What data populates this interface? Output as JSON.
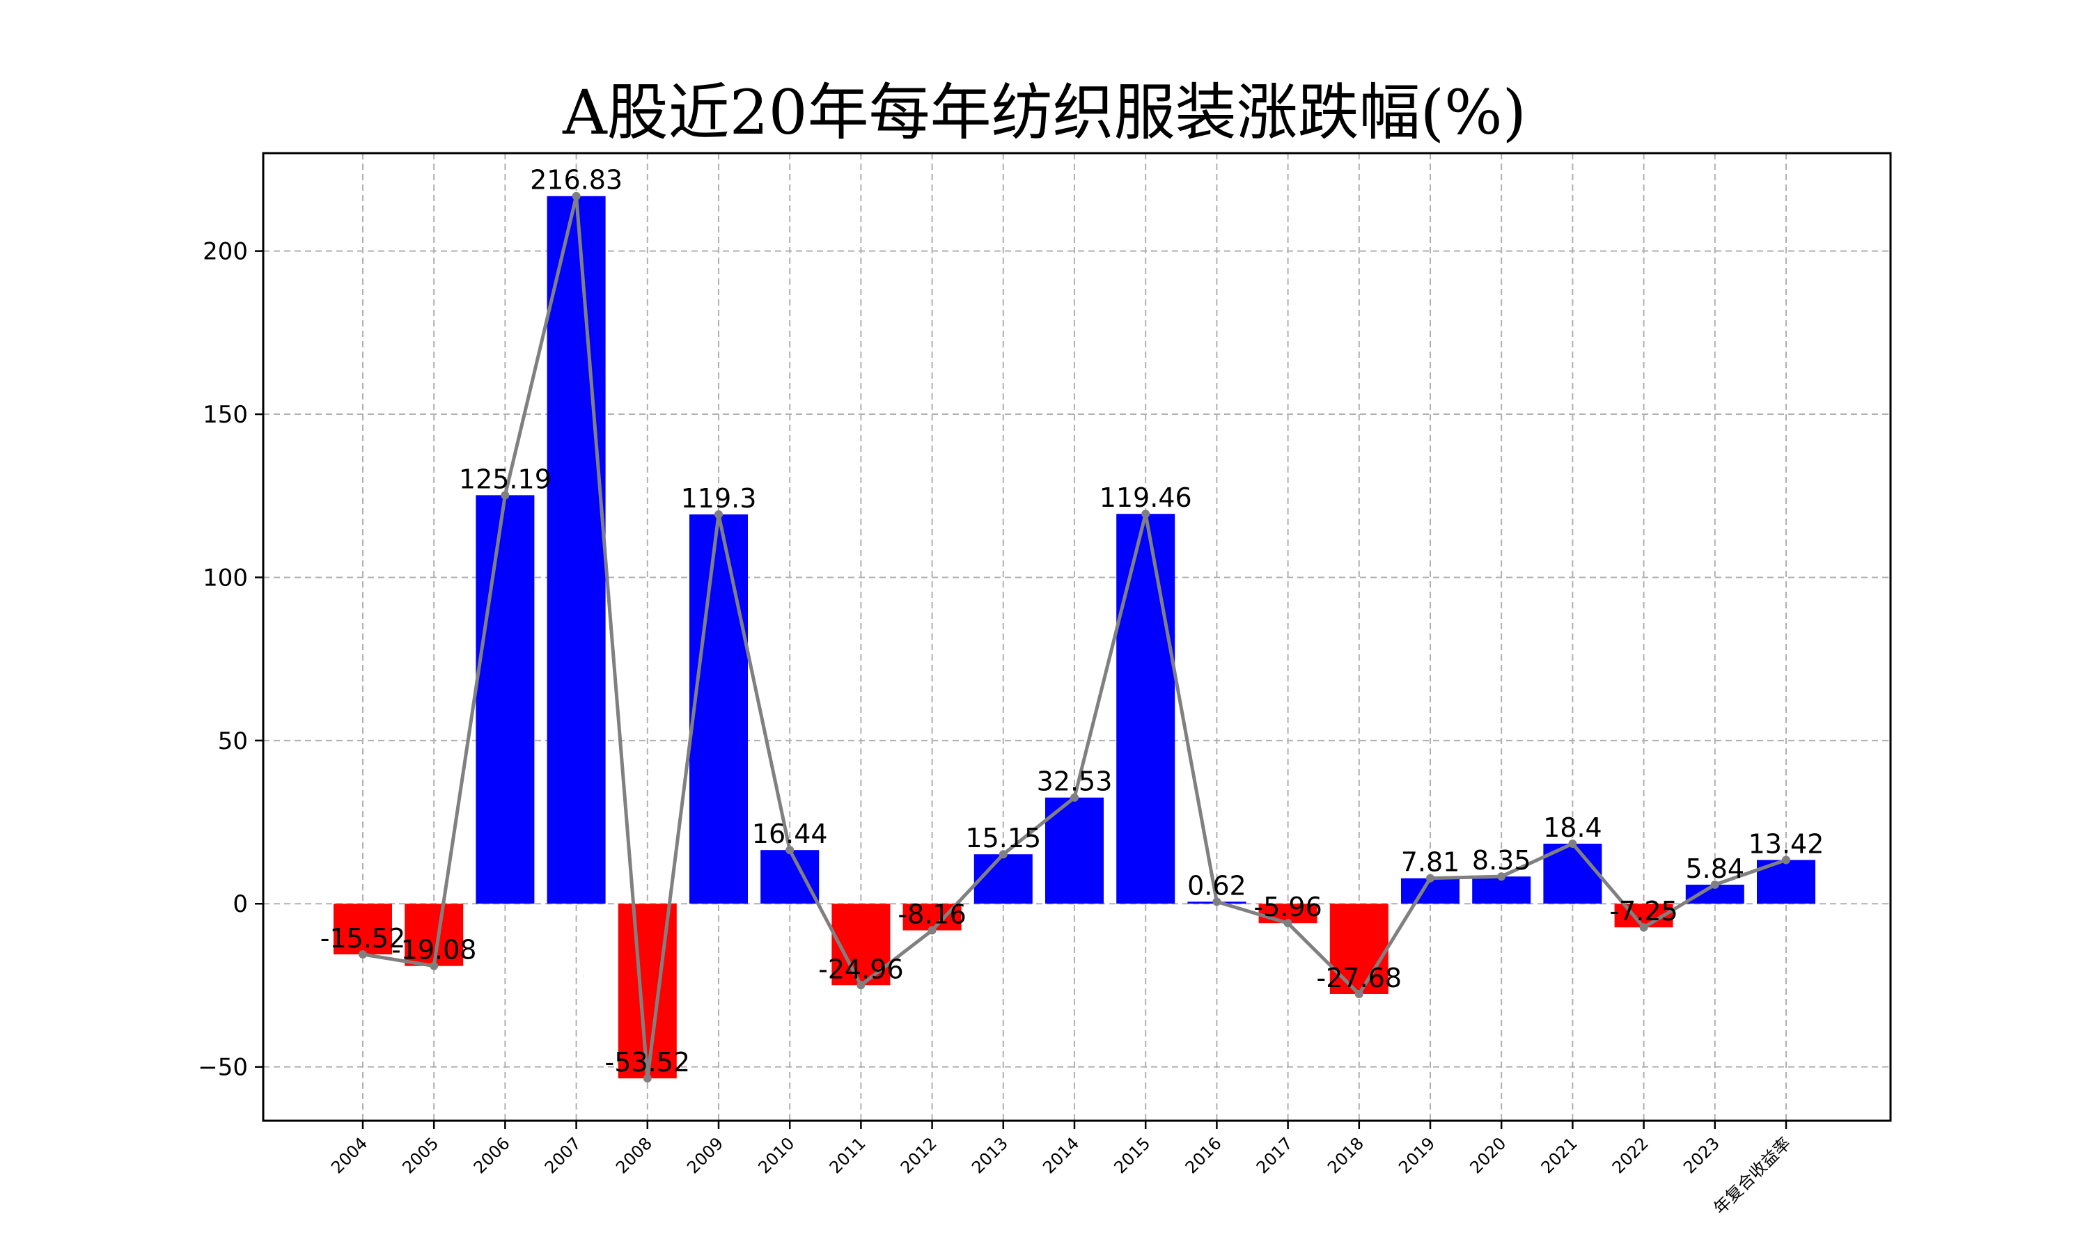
{
  "chart_data": {
    "type": "bar",
    "title": "A股近20年每年纺织服装涨跌幅(%)",
    "xlabel": "",
    "ylabel": "",
    "categories": [
      "2004",
      "2005",
      "2006",
      "2007",
      "2008",
      "2009",
      "2010",
      "2011",
      "2012",
      "2013",
      "2014",
      "2015",
      "2016",
      "2017",
      "2018",
      "2019",
      "2020",
      "2021",
      "2022",
      "2023",
      "年复合收益率"
    ],
    "values": [
      -15.52,
      -19.08,
      125.19,
      216.83,
      -53.52,
      119.3,
      16.44,
      -24.96,
      -8.16,
      15.15,
      32.53,
      119.46,
      0.62,
      -5.96,
      -27.68,
      7.81,
      8.35,
      18.4,
      -7.25,
      5.84,
      13.42
    ],
    "value_labels": [
      "-15.52",
      "-19.08",
      "125.19",
      "216.83",
      "-53.52",
      "119.3",
      "16.44",
      "-24.96",
      "-8.16",
      "15.15",
      "32.53",
      "119.46",
      "0.62",
      "-5.96",
      "-27.68",
      "7.81",
      "8.35",
      "18.4",
      "-7.25",
      "5.84",
      "13.42"
    ],
    "overlay_line": true,
    "ylim": [
      -66.5,
      230
    ],
    "yticks": [
      -50,
      0,
      50,
      100,
      150,
      200
    ],
    "ytick_labels": [
      "−50",
      "0",
      "50",
      "100",
      "150",
      "200"
    ],
    "grid": true,
    "colors": {
      "positive": "#0000ff",
      "negative": "#ff0000",
      "line": "#808080",
      "grid": "#b0b0b0"
    }
  }
}
